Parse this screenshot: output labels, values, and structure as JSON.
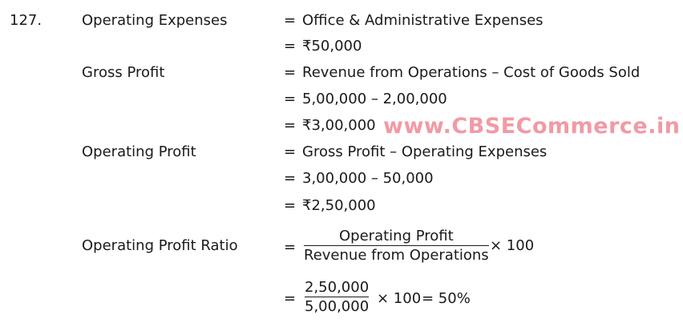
{
  "question_number": "127.",
  "rows": [
    {
      "label": "Operating Expenses",
      "eq": "=",
      "rhs": "Office & Administrative Expenses"
    },
    {
      "label": "",
      "eq": "=",
      "rhs": "₹50,000"
    },
    {
      "label": "Gross Profit",
      "eq": "=",
      "rhs": "Revenue from Operations – Cost of Goods Sold"
    },
    {
      "label": "",
      "eq": "=",
      "rhs": "5,00,000 – 2,00,000"
    },
    {
      "label": "",
      "eq": "=",
      "rhs": "₹3,00,000"
    },
    {
      "label": "Operating Profit",
      "eq": "=",
      "rhs": "Gross Profit – Operating Expenses"
    },
    {
      "label": "",
      "eq": "=",
      "rhs": "3,00,000 – 50,000"
    },
    {
      "label": "",
      "eq": "=",
      "rhs": "₹2,50,000"
    }
  ],
  "ratio": {
    "label": "Operating Profit Ratio",
    "eq": "=",
    "formula": {
      "numerator": "Operating Profit",
      "denominator": "Revenue from Operations",
      "multiplier": "× 100"
    },
    "calc": {
      "eq": "=",
      "numerator": "2,50,000",
      "denominator": "5,00,000",
      "multiplier": "× 100",
      "result": "= 50%"
    }
  },
  "watermark": "www.CBSECommerce.in"
}
